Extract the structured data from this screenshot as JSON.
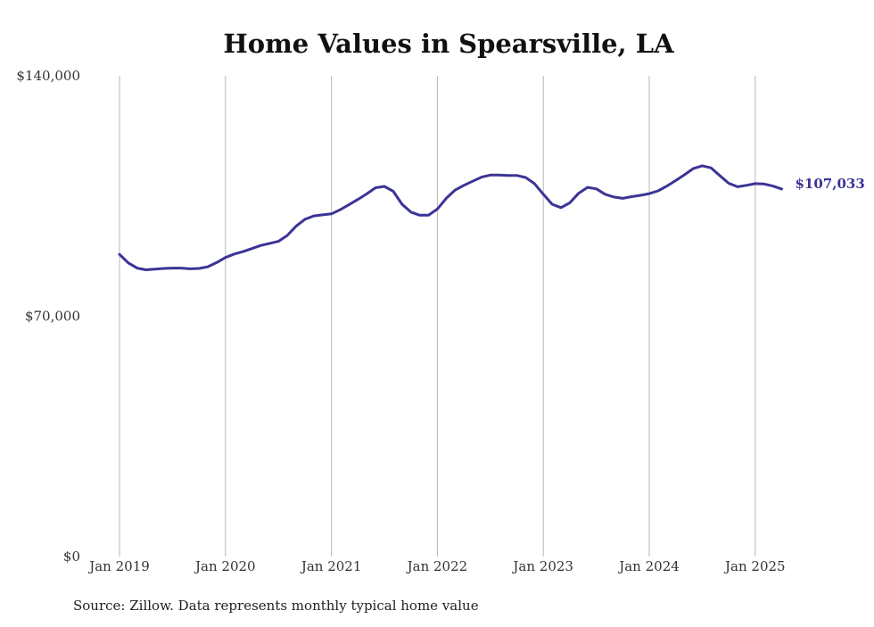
{
  "chart_data": {
    "type": "line",
    "title": "Home Values in Spearsville, LA",
    "xlabel": "",
    "ylabel": "",
    "source": "Source: Zillow. Data represents monthly typical home value",
    "x_tick_labels": [
      "Jan 2019",
      "Jan 2020",
      "Jan 2021",
      "Jan 2022",
      "Jan 2023",
      "Jan 2024",
      "Jan 2025"
    ],
    "y_tick_labels": [
      "$0",
      "$70,000",
      "$140,000"
    ],
    "y_ticks": [
      0,
      70000,
      140000
    ],
    "ylim": [
      0,
      140000
    ],
    "xlim": [
      "2019-01",
      "2025-04"
    ],
    "grid": "vertical lines at each January",
    "line_color": "#3b3496",
    "end_label": "$107,033",
    "series": [
      {
        "x": [
          "2019-01",
          "2019-02",
          "2019-03",
          "2019-04",
          "2019-05",
          "2019-06",
          "2019-07",
          "2019-08",
          "2019-09",
          "2019-10",
          "2019-11",
          "2019-12",
          "2020-01",
          "2020-02",
          "2020-03",
          "2020-04",
          "2020-05",
          "2020-06",
          "2020-07",
          "2020-08",
          "2020-09",
          "2020-10",
          "2020-11",
          "2020-12",
          "2021-01",
          "2021-02",
          "2021-03",
          "2021-04",
          "2021-05",
          "2021-06",
          "2021-07",
          "2021-08",
          "2021-09",
          "2021-10",
          "2021-11",
          "2021-12",
          "2022-01",
          "2022-02",
          "2022-03",
          "2022-04",
          "2022-05",
          "2022-06",
          "2022-07",
          "2022-08",
          "2022-09",
          "2022-10",
          "2022-11",
          "2022-12",
          "2023-01",
          "2023-02",
          "2023-03",
          "2023-04",
          "2023-05",
          "2023-06",
          "2023-07",
          "2023-08",
          "2023-09",
          "2023-10",
          "2023-11",
          "2023-12",
          "2024-01",
          "2024-02",
          "2024-03",
          "2024-04",
          "2024-05",
          "2024-06",
          "2024-07",
          "2024-08",
          "2024-09",
          "2024-10",
          "2024-11",
          "2024-12",
          "2025-01",
          "2025-02",
          "2025-03",
          "2025-04"
        ],
        "values": [
          88000,
          85500,
          84000,
          83500,
          83700,
          83900,
          84000,
          84000,
          83800,
          83900,
          84400,
          85600,
          87100,
          88100,
          88800,
          89700,
          90600,
          91200,
          91800,
          93500,
          96200,
          98200,
          99200,
          99500,
          99800,
          101000,
          102500,
          104000,
          105600,
          107400,
          107800,
          106400,
          102600,
          100300,
          99400,
          99400,
          101200,
          104300,
          106700,
          108100,
          109300,
          110500,
          111100,
          111100,
          111000,
          111000,
          110400,
          108600,
          105500,
          102600,
          101600,
          103000,
          105800,
          107500,
          107100,
          105500,
          104700,
          104300,
          104800,
          105200,
          105700,
          106500,
          107900,
          109500,
          111200,
          113000,
          113800,
          113200,
          110900,
          108700,
          107700,
          108100,
          108600,
          108500,
          107900,
          107033
        ]
      }
    ]
  }
}
